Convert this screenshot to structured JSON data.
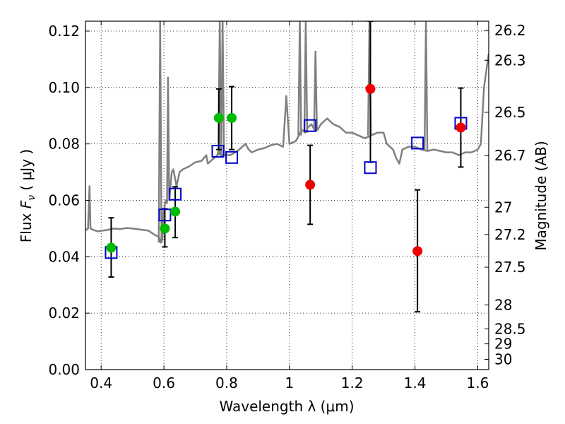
{
  "chart_data": {
    "type": "scatter",
    "xlabel": "Wavelength  λ (μm)",
    "ylabel": "Flux  F_ν  ( μJy )",
    "ylabel_right": "Magnitude (AB)",
    "xlim": [
      0.35,
      1.635
    ],
    "ylim": [
      0.0,
      0.1235
    ],
    "x_ticks": [
      0.4,
      0.6,
      0.8,
      1.0,
      1.2,
      1.4,
      1.6
    ],
    "x_tick_labels": [
      "0.4",
      "0.6",
      "0.8",
      "1",
      "1.2",
      "1.4",
      "1.6"
    ],
    "y_ticks": [
      0.0,
      0.02,
      0.04,
      0.06,
      0.08,
      0.1,
      0.12
    ],
    "y_tick_labels": [
      "0.00",
      "0.02",
      "0.04",
      "0.06",
      "0.08",
      "0.10",
      "0.12"
    ],
    "right_ticks": [
      {
        "label": "26.2",
        "mag": 26.2
      },
      {
        "label": "26.3",
        "mag": 26.3
      },
      {
        "label": "26.5",
        "mag": 26.5
      },
      {
        "label": "26.7",
        "mag": 26.7
      },
      {
        "label": "27",
        "mag": 27.0
      },
      {
        "label": "27.2",
        "mag": 27.2
      },
      {
        "label": "27.5",
        "mag": 27.5
      },
      {
        "label": "28",
        "mag": 28.0
      },
      {
        "label": "28.5",
        "mag": 28.5
      },
      {
        "label": "29",
        "mag": 29.0
      },
      {
        "label": "30",
        "mag": 30.0
      }
    ],
    "grid": true,
    "colors": {
      "model": "#808080",
      "green": "#00bb00",
      "red": "#ee0000",
      "box": "#0000cc",
      "errorbar": "#000000"
    },
    "series": [
      {
        "marker": "line",
        "points": [
          [
            0.35,
            0.0494
          ],
          [
            0.358,
            0.05
          ],
          [
            0.363,
            0.065
          ],
          [
            0.366,
            0.05
          ],
          [
            0.375,
            0.0495
          ],
          [
            0.39,
            0.049
          ],
          [
            0.4,
            0.0492
          ],
          [
            0.42,
            0.0495
          ],
          [
            0.44,
            0.05
          ],
          [
            0.46,
            0.0498
          ],
          [
            0.48,
            0.0502
          ],
          [
            0.5,
            0.05
          ],
          [
            0.52,
            0.0497
          ],
          [
            0.55,
            0.0493
          ],
          [
            0.57,
            0.0478
          ],
          [
            0.585,
            0.047
          ],
          [
            0.59,
            0.045
          ],
          [
            0.595,
            0.046
          ],
          [
            0.598,
            0.056
          ],
          [
            0.6,
            0.056
          ],
          [
            0.605,
            0.06
          ],
          [
            0.61,
            0.059
          ],
          [
            0.613,
            0.1035
          ],
          [
            0.617,
            0.06
          ],
          [
            0.625,
            0.07
          ],
          [
            0.63,
            0.071
          ],
          [
            0.64,
            0.065
          ],
          [
            0.65,
            0.07
          ],
          [
            0.66,
            0.071
          ],
          [
            0.68,
            0.072
          ],
          [
            0.7,
            0.0735
          ],
          [
            0.72,
            0.074
          ],
          [
            0.735,
            0.076
          ],
          [
            0.74,
            0.073
          ],
          [
            0.75,
            0.074
          ],
          [
            0.76,
            0.075
          ],
          [
            0.77,
            0.076
          ],
          [
            0.775,
            0.078
          ],
          [
            0.78,
            0.076
          ],
          [
            0.79,
            0.076
          ],
          [
            0.8,
            0.076
          ],
          [
            0.81,
            0.076
          ],
          [
            0.82,
            0.0765
          ],
          [
            0.84,
            0.078
          ],
          [
            0.85,
            0.079
          ],
          [
            0.86,
            0.08
          ],
          [
            0.87,
            0.078
          ],
          [
            0.88,
            0.077
          ],
          [
            0.9,
            0.078
          ],
          [
            0.92,
            0.0785
          ],
          [
            0.94,
            0.0795
          ],
          [
            0.96,
            0.08
          ],
          [
            0.98,
            0.079
          ],
          [
            0.99,
            0.097
          ],
          [
            1.0,
            0.08
          ],
          [
            1.02,
            0.081
          ],
          [
            1.03,
            0.083
          ],
          [
            1.04,
            0.085
          ],
          [
            1.05,
            0.084
          ],
          [
            1.06,
            0.086
          ],
          [
            1.07,
            0.087
          ],
          [
            1.08,
            0.085
          ],
          [
            1.09,
            0.085
          ],
          [
            1.1,
            0.087
          ],
          [
            1.12,
            0.089
          ],
          [
            1.14,
            0.087
          ],
          [
            1.16,
            0.086
          ],
          [
            1.18,
            0.084
          ],
          [
            1.2,
            0.084
          ],
          [
            1.22,
            0.083
          ],
          [
            1.24,
            0.082
          ],
          [
            1.26,
            0.083
          ],
          [
            1.28,
            0.084
          ],
          [
            1.3,
            0.084
          ],
          [
            1.31,
            0.08
          ],
          [
            1.32,
            0.079
          ],
          [
            1.33,
            0.078
          ],
          [
            1.34,
            0.075
          ],
          [
            1.35,
            0.073
          ],
          [
            1.36,
            0.078
          ],
          [
            1.38,
            0.079
          ],
          [
            1.4,
            0.079
          ],
          [
            1.42,
            0.078
          ],
          [
            1.44,
            0.0775
          ],
          [
            1.46,
            0.078
          ],
          [
            1.48,
            0.0775
          ],
          [
            1.5,
            0.077
          ],
          [
            1.52,
            0.077
          ],
          [
            1.54,
            0.076
          ],
          [
            1.56,
            0.077
          ],
          [
            1.58,
            0.077
          ],
          [
            1.6,
            0.078
          ],
          [
            1.61,
            0.08
          ],
          [
            1.62,
            0.1
          ],
          [
            1.635,
            0.112
          ]
        ],
        "spikes": [
          {
            "x": 0.588,
            "y": 0.1235
          },
          {
            "x": 0.778,
            "y": 0.1235
          },
          {
            "x": 0.787,
            "y": 0.1235
          },
          {
            "x": 1.033,
            "y": 0.1235
          },
          {
            "x": 1.052,
            "y": 0.1235
          },
          {
            "x": 1.083,
            "y": 0.113
          },
          {
            "x": 1.255,
            "y": 0.1235
          },
          {
            "x": 1.435,
            "y": 0.1235
          }
        ]
      },
      {
        "marker": "green-circle",
        "points": [
          {
            "x": 0.432,
            "y": 0.0432,
            "lo": 0.0328,
            "hi": 0.0538
          },
          {
            "x": 0.603,
            "y": 0.05,
            "lo": 0.0435,
            "hi": 0.057
          },
          {
            "x": 0.636,
            "y": 0.056,
            "lo": 0.0468,
            "hi": 0.0648
          },
          {
            "x": 0.775,
            "y": 0.0892,
            "lo": 0.078,
            "hi": 0.0995
          },
          {
            "x": 0.816,
            "y": 0.0892,
            "lo": 0.078,
            "hi": 0.1003
          }
        ]
      },
      {
        "marker": "red-circle",
        "points": [
          {
            "x": 1.066,
            "y": 0.0655,
            "lo": 0.0515,
            "hi": 0.0795
          },
          {
            "x": 1.258,
            "y": 0.0995,
            "lo": 0.0735,
            "hi": 0.1235
          },
          {
            "x": 1.408,
            "y": 0.042,
            "lo": 0.0205,
            "hi": 0.0637
          },
          {
            "x": 1.546,
            "y": 0.0858,
            "lo": 0.0718,
            "hi": 0.0998
          }
        ]
      },
      {
        "marker": "open-square",
        "points": [
          {
            "x": 0.432,
            "y": 0.0415
          },
          {
            "x": 0.603,
            "y": 0.0548
          },
          {
            "x": 0.636,
            "y": 0.0622
          },
          {
            "x": 0.772,
            "y": 0.0774
          },
          {
            "x": 0.816,
            "y": 0.0752
          },
          {
            "x": 1.066,
            "y": 0.0865
          },
          {
            "x": 1.258,
            "y": 0.0716
          },
          {
            "x": 1.408,
            "y": 0.0803
          },
          {
            "x": 1.546,
            "y": 0.0873
          }
        ]
      }
    ]
  }
}
